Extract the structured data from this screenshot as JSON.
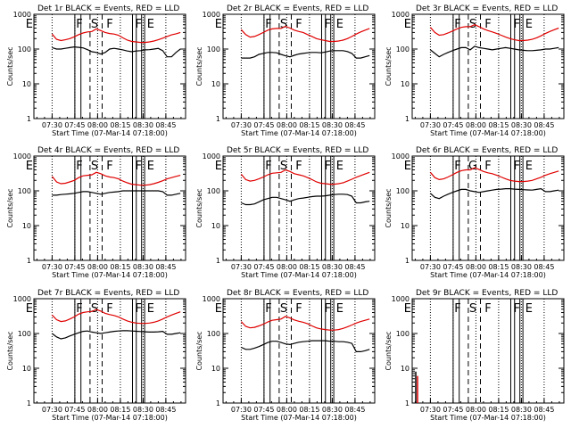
{
  "figure": {
    "colors": {
      "background": "#ffffff",
      "axes": "#000000",
      "events": "#000000",
      "lld": "#e00000"
    }
  },
  "chart_data": [
    {
      "type": "line",
      "title": "Det 1r BLACK = Events, RED = LLD",
      "xlabel": "Start Time (07-Mar-14 07:18:00)",
      "ylabel": "Counts/sec",
      "yscale": "log",
      "ylim": [
        1,
        1000
      ],
      "x_tick_labels": [
        "07:30",
        "07:45",
        "08:00",
        "08:15",
        "08:30",
        "08:45"
      ],
      "y_tick_labels": [
        "1",
        "10",
        "100",
        "1000"
      ],
      "flags": [
        "E",
        "F",
        "S",
        "F",
        "F",
        "E"
      ],
      "series": [
        {
          "values": [
            110,
            100,
            100,
            105,
            110,
            115,
            112,
            108,
            96,
            84,
            80,
            72,
            80,
            100,
            105,
            100,
            95,
            88,
            84,
            88,
            90,
            95,
            96,
            100,
            104,
            90,
            60,
            60,
            80,
            100
          ]
        },
        {
          "values": [
            270,
            190,
            175,
            185,
            200,
            225,
            260,
            290,
            310,
            320,
            380,
            340,
            300,
            280,
            270,
            250,
            210,
            180,
            165,
            160,
            155,
            155,
            160,
            170,
            185,
            205,
            230,
            255,
            275,
            300
          ]
        }
      ]
    },
    {
      "type": "line",
      "title": "Det 2r BLACK = Events, RED = LLD",
      "xlabel": "Start Time (07-Mar-14 07:18:00)",
      "ylabel": "Counts/sec",
      "yscale": "log",
      "ylim": [
        1,
        1000
      ],
      "x_tick_labels": [
        "07:30",
        "07:45",
        "08:00",
        "08:15",
        "08:30",
        "08:45"
      ],
      "y_tick_labels": [
        "1",
        "10",
        "100",
        "1000"
      ],
      "flags": [
        "E",
        "F",
        "S",
        "F",
        "F",
        "E"
      ],
      "series": [
        {
          "values": [
            55,
            55,
            55,
            60,
            70,
            75,
            80,
            80,
            78,
            70,
            64,
            60,
            66,
            72,
            75,
            78,
            80,
            80,
            78,
            82,
            88,
            90,
            90,
            90,
            85,
            75,
            55,
            55,
            60,
            65
          ]
        },
        {
          "values": [
            360,
            260,
            220,
            230,
            260,
            300,
            350,
            380,
            390,
            390,
            450,
            400,
            350,
            320,
            300,
            260,
            230,
            200,
            185,
            175,
            165,
            165,
            170,
            180,
            200,
            230,
            270,
            310,
            350,
            390
          ]
        }
      ]
    },
    {
      "type": "line",
      "title": "Det 3r BLACK = Events, RED = LLD",
      "xlabel": "Start Time (07-Mar-14 07:18:00)",
      "ylabel": "Counts/sec",
      "yscale": "log",
      "ylim": [
        1,
        1000
      ],
      "x_tick_labels": [
        "07:30",
        "07:45",
        "08:00",
        "08:15",
        "08:30",
        "08:45"
      ],
      "y_tick_labels": [
        "1",
        "10",
        "100",
        "1000"
      ],
      "flags": [
        "E",
        "F",
        "S",
        "F",
        "F",
        "E"
      ],
      "series": [
        {
          "values": [
            95,
            75,
            60,
            70,
            80,
            90,
            100,
            110,
            110,
            95,
            120,
            110,
            105,
            100,
            95,
            100,
            105,
            110,
            105,
            100,
            95,
            92,
            90,
            90,
            92,
            95,
            100,
            100,
            105,
            110
          ]
        },
        {
          "values": [
            420,
            300,
            250,
            260,
            290,
            330,
            380,
            420,
            440,
            440,
            500,
            440,
            380,
            340,
            310,
            280,
            250,
            220,
            200,
            185,
            175,
            175,
            180,
            190,
            210,
            240,
            280,
            320,
            360,
            400
          ]
        }
      ]
    },
    {
      "type": "line",
      "title": "Det 4r BLACK = Events, RED = LLD",
      "xlabel": "Start Time (07-Mar-14 07:18:00)",
      "ylabel": "Counts/sec",
      "yscale": "log",
      "ylim": [
        1,
        1000
      ],
      "x_tick_labels": [
        "07:30",
        "07:45",
        "08:00",
        "08:15",
        "08:30",
        "08:45"
      ],
      "y_tick_labels": [
        "1",
        "10",
        "100",
        "1000"
      ],
      "flags": [
        "E",
        "F",
        "S",
        "F",
        "F",
        "E"
      ],
      "series": [
        {
          "values": [
            75,
            75,
            78,
            80,
            82,
            85,
            90,
            95,
            95,
            90,
            85,
            80,
            85,
            90,
            92,
            95,
            100,
            100,
            100,
            100,
            100,
            100,
            100,
            100,
            100,
            95,
            75,
            75,
            80,
            85
          ]
        },
        {
          "values": [
            260,
            180,
            160,
            165,
            180,
            200,
            240,
            270,
            280,
            290,
            340,
            310,
            270,
            250,
            240,
            220,
            190,
            170,
            155,
            150,
            145,
            145,
            150,
            160,
            175,
            195,
            220,
            240,
            260,
            280
          ]
        }
      ]
    },
    {
      "type": "line",
      "title": "Det 5r BLACK = Events, RED = LLD",
      "xlabel": "Start Time (07-Mar-14 07:18:00)",
      "ylabel": "Counts/sec",
      "yscale": "log",
      "ylim": [
        1,
        1000
      ],
      "x_tick_labels": [
        "07:30",
        "07:45",
        "08:00",
        "08:15",
        "08:30",
        "08:45"
      ],
      "y_tick_labels": [
        "1",
        "10",
        "100",
        "1000"
      ],
      "flags": [
        "E",
        "F",
        "S",
        "F",
        "F",
        "E"
      ],
      "series": [
        {
          "values": [
            45,
            40,
            40,
            42,
            48,
            55,
            60,
            65,
            65,
            60,
            55,
            50,
            55,
            60,
            62,
            65,
            68,
            70,
            70,
            72,
            75,
            78,
            80,
            80,
            78,
            70,
            45,
            45,
            48,
            50
          ]
        },
        {
          "values": [
            300,
            210,
            190,
            200,
            220,
            250,
            290,
            320,
            330,
            340,
            400,
            360,
            310,
            290,
            270,
            240,
            210,
            180,
            165,
            160,
            155,
            155,
            160,
            170,
            190,
            215,
            245,
            275,
            305,
            340
          ]
        }
      ]
    },
    {
      "type": "line",
      "title": "Det 6r BLACK = Events, RED = LLD",
      "xlabel": "Start Time (07-Mar-14 07:18:00)",
      "ylabel": "Counts/sec",
      "yscale": "log",
      "ylim": [
        1,
        1000
      ],
      "x_tick_labels": [
        "07:30",
        "07:45",
        "08:00",
        "08:15",
        "08:30",
        "08:45"
      ],
      "y_tick_labels": [
        "1",
        "10",
        "100",
        "1000"
      ],
      "flags": [
        "E",
        "F",
        "G",
        "F",
        "F",
        "E"
      ],
      "series": [
        {
          "values": [
            85,
            65,
            60,
            70,
            80,
            90,
            100,
            110,
            110,
            100,
            95,
            90,
            95,
            100,
            105,
            110,
            112,
            115,
            115,
            112,
            110,
            108,
            106,
            105,
            110,
            115,
            95,
            95,
            100,
            105
          ]
        },
        {
          "values": [
            340,
            240,
            210,
            220,
            250,
            290,
            340,
            380,
            400,
            400,
            460,
            410,
            360,
            330,
            310,
            280,
            250,
            220,
            200,
            190,
            185,
            185,
            190,
            200,
            220,
            245,
            280,
            310,
            340,
            370
          ]
        }
      ]
    },
    {
      "type": "line",
      "title": "Det 7r BLACK = Events, RED = LLD",
      "xlabel": "Start Time (07-Mar-14 07:18:00)",
      "ylabel": "Counts/sec",
      "yscale": "log",
      "ylim": [
        1,
        1000
      ],
      "x_tick_labels": [
        "07:30",
        "07:45",
        "08:00",
        "08:15",
        "08:30",
        "08:45"
      ],
      "y_tick_labels": [
        "1",
        "10",
        "100",
        "1000"
      ],
      "flags": [
        "E",
        "F",
        "S",
        "F",
        "F",
        "E"
      ],
      "series": [
        {
          "values": [
            100,
            80,
            70,
            75,
            85,
            95,
            105,
            115,
            118,
            110,
            105,
            100,
            105,
            110,
            115,
            118,
            120,
            120,
            118,
            116,
            114,
            112,
            110,
            110,
            112,
            115,
            95,
            95,
            100,
            105
          ]
        },
        {
          "values": [
            340,
            250,
            220,
            230,
            260,
            300,
            360,
            400,
            420,
            430,
            490,
            440,
            380,
            350,
            330,
            300,
            260,
            230,
            210,
            200,
            195,
            195,
            200,
            210,
            230,
            260,
            300,
            340,
            380,
            420
          ]
        }
      ]
    },
    {
      "type": "line",
      "title": "Det 8r BLACK = Events, RED = LLD",
      "xlabel": "Start Time (07-Mar-14 07:18:00)",
      "ylabel": "Counts/sec",
      "yscale": "log",
      "ylim": [
        1,
        1000
      ],
      "x_tick_labels": [
        "07:30",
        "07:45",
        "08:00",
        "08:15",
        "08:30",
        "08:45"
      ],
      "y_tick_labels": [
        "1",
        "10",
        "100",
        "1000"
      ],
      "flags": [
        "E",
        "F",
        "S",
        "F",
        "F",
        "E"
      ],
      "series": [
        {
          "values": [
            40,
            35,
            35,
            38,
            42,
            48,
            55,
            60,
            60,
            55,
            50,
            48,
            52,
            56,
            58,
            60,
            62,
            62,
            62,
            62,
            60,
            60,
            58,
            58,
            56,
            52,
            30,
            30,
            32,
            35
          ]
        },
        {
          "values": [
            220,
            160,
            145,
            150,
            165,
            185,
            215,
            240,
            250,
            260,
            310,
            280,
            245,
            225,
            210,
            190,
            165,
            145,
            135,
            130,
            125,
            125,
            130,
            140,
            155,
            175,
            200,
            220,
            240,
            260
          ]
        }
      ]
    },
    {
      "type": "line",
      "title": "Det 9r BLACK = Events, RED = LLD",
      "xlabel": "Start Time (07-Mar-14 07:18:00)",
      "ylabel": "Counts/sec",
      "yscale": "log",
      "ylim": [
        1,
        1000
      ],
      "x_tick_labels": [
        "07:30",
        "07:45",
        "08:00",
        "08:15",
        "08:30",
        "08:45"
      ],
      "y_tick_labels": [
        "1",
        "10",
        "100",
        "1000"
      ],
      "flags": [
        "E",
        "F",
        "S",
        "F",
        "F",
        "E"
      ],
      "series": [
        {
          "values": []
        },
        {
          "values": []
        }
      ]
    }
  ]
}
